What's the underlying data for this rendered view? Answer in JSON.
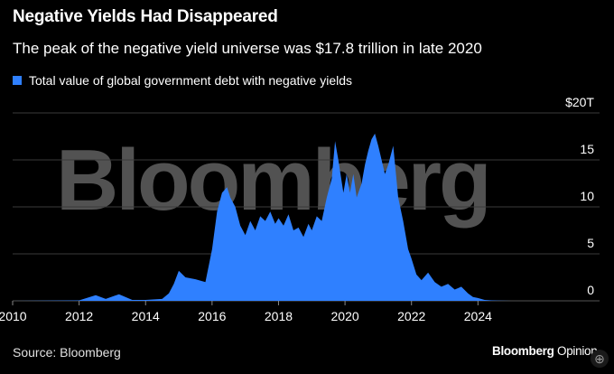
{
  "header": {
    "title": "Negative Yields Had Disappeared",
    "subtitle": "The peak of the negative yield universe was $17.8 trillion in late 2020"
  },
  "footer": {
    "source": "Source: Bloomberg",
    "brand_main": "Bloomberg",
    "brand_sub": "Opinion"
  },
  "watermark": "Bloomberg",
  "colors": {
    "background": "#000000",
    "series": "#2f80ff",
    "grid": "#3a3a3a",
    "text": "#ffffff"
  },
  "chart_data": {
    "type": "area",
    "title": "Negative Yields Had Disappeared",
    "subtitle": "The peak of the negative yield universe was $17.8 trillion in late 2020",
    "xlabel": "",
    "ylabel": "",
    "xlim": [
      2010,
      2026.3
    ],
    "ylim": [
      0,
      20
    ],
    "y_unit_label": "$20T",
    "x_ticks": [
      "2010",
      "2012",
      "2014",
      "2016",
      "2018",
      "2020",
      "2022",
      "2024"
    ],
    "y_ticks": [
      "0",
      "5",
      "10",
      "15",
      "$20T"
    ],
    "legend": {
      "position": "top-left"
    },
    "grid": true,
    "series": [
      {
        "name": "Total value of global government debt with negative yields",
        "color": "#2f80ff",
        "x": [
          2010.0,
          2012.0,
          2012.5,
          2012.8,
          2013.2,
          2013.6,
          2014.0,
          2014.5,
          2014.7,
          2014.85,
          2015.0,
          2015.2,
          2015.5,
          2015.8,
          2016.0,
          2016.15,
          2016.3,
          2016.45,
          2016.55,
          2016.7,
          2016.85,
          2017.0,
          2017.15,
          2017.3,
          2017.45,
          2017.6,
          2017.75,
          2017.9,
          2018.0,
          2018.15,
          2018.3,
          2018.45,
          2018.6,
          2018.75,
          2018.9,
          2019.0,
          2019.15,
          2019.3,
          2019.45,
          2019.6,
          2019.7,
          2019.8,
          2019.95,
          2020.05,
          2020.15,
          2020.25,
          2020.35,
          2020.5,
          2020.6,
          2020.7,
          2020.8,
          2020.9,
          2021.0,
          2021.1,
          2021.2,
          2021.3,
          2021.45,
          2021.6,
          2021.75,
          2021.9,
          2022.0,
          2022.15,
          2022.3,
          2022.5,
          2022.7,
          2022.9,
          2023.1,
          2023.3,
          2023.5,
          2023.7,
          2023.85,
          2024.0,
          2024.2,
          2024.4,
          2024.6,
          2025.0,
          2025.5
        ],
        "values": [
          0.0,
          0.05,
          0.6,
          0.2,
          0.7,
          0.1,
          0.1,
          0.2,
          0.8,
          1.8,
          3.2,
          2.5,
          2.3,
          2.0,
          5.5,
          9.5,
          11.5,
          12.1,
          11.0,
          10.0,
          8.0,
          7.0,
          8.5,
          7.5,
          9.0,
          8.5,
          9.5,
          8.2,
          8.8,
          8.0,
          9.2,
          7.5,
          7.8,
          6.8,
          8.2,
          7.5,
          9.0,
          8.5,
          11.0,
          13.0,
          17.0,
          15.0,
          11.5,
          13.5,
          11.5,
          13.5,
          11.0,
          12.5,
          14.5,
          16.0,
          17.2,
          17.8,
          16.5,
          15.0,
          13.5,
          14.5,
          16.5,
          11.0,
          8.5,
          5.5,
          4.5,
          2.8,
          2.2,
          3.0,
          2.0,
          1.5,
          1.8,
          1.2,
          1.5,
          0.8,
          0.4,
          0.3,
          0.1,
          0.05,
          0.02,
          0.0,
          0.0
        ]
      }
    ]
  }
}
